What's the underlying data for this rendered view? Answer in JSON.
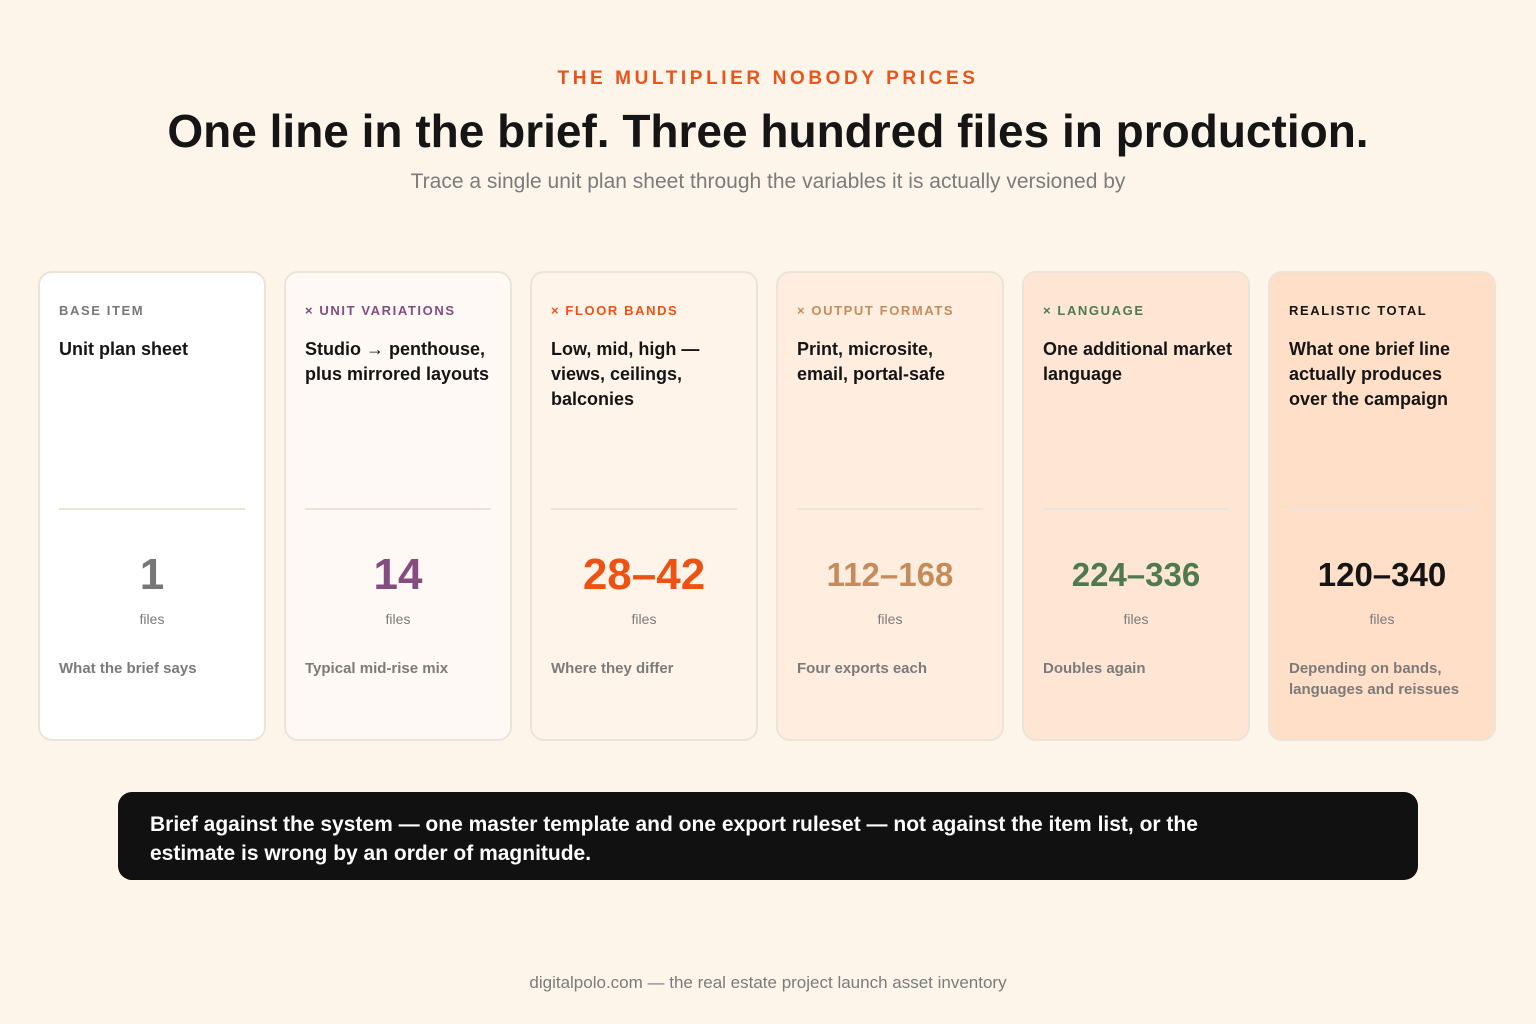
{
  "header": {
    "eyebrow": "THE MULTIPLIER NOBODY PRICES",
    "title": "One line in the brief. Three hundred files in production.",
    "subtitle": "Trace a single unit plan sheet through the variables it is actually versioned by"
  },
  "cards": [
    {
      "label": "BASE ITEM",
      "description": "Unit plan sheet",
      "count": "1",
      "unit": "files",
      "note": "What the brief says",
      "accent_color": "#777777",
      "background": "#ffffff"
    },
    {
      "label": "× UNIT VARIATIONS",
      "description": "Studio → penthouse, plus mirrored layouts",
      "count": "14",
      "unit": "files",
      "note": "Typical mid-rise mix",
      "accent_color": "#844c7f",
      "background": "#fef9f4"
    },
    {
      "label": "× FLOOR BANDS",
      "description": "Low, mid, high — views, ceilings, balconies",
      "count": "28–42",
      "unit": "files",
      "note": "Where they differ",
      "accent_color": "#ee5213",
      "background": "#fff4ea"
    },
    {
      "label": "× OUTPUT FORMATS",
      "description": "Print, microsite, email, portal-safe",
      "count": "112–168",
      "unit": "files",
      "note": "Four exports each",
      "accent_color": "#c58c5b",
      "background": "#ffeddf"
    },
    {
      "label": "× LANGUAGE",
      "description": "One additional market language",
      "count": "224–336",
      "unit": "files",
      "note": "Doubles again",
      "accent_color": "#4e7a4d",
      "background": "#ffe6d4"
    },
    {
      "label": "REALISTIC TOTAL",
      "description": "What one brief line actually produces over the campaign",
      "count": "120–340",
      "unit": "files",
      "note": "Depending on bands, languages and reissues",
      "accent_color": "#151515",
      "background": "#ffdfc7"
    }
  ],
  "callout": {
    "text": "Brief against the system — one master template and one export ruleset — not against the item list, or the estimate is wrong by an order of magnitude."
  },
  "footer": {
    "text": "digitalpolo.com — the real estate project launch asset inventory"
  }
}
